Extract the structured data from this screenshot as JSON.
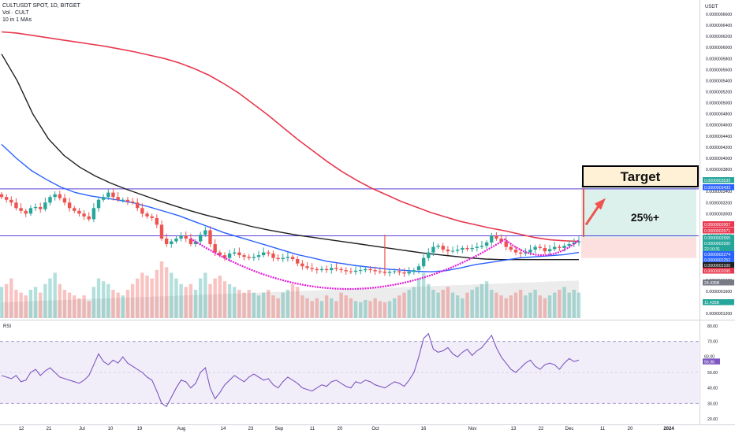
{
  "header": {
    "symbol_line": "CULTUSDT SPOT, 1D, BITGET",
    "volume_line": "Vol · CULT",
    "ma_line": "10 in 1 MAs"
  },
  "currency": "USDT",
  "colors": {
    "up": "#26a69a",
    "down": "#ef5350",
    "ma_red": "#e8384f",
    "ma_black": "#1e1e1e",
    "ma_blue": "#2962ff",
    "cup": "#e21bd4",
    "level": "#5b3fd6",
    "rsi": "#7e57c2",
    "target_fill": "#fff1d6"
  },
  "chart_data": [
    {
      "type": "candlestick",
      "title": "CULTUSDT SPOT, 1D, BITGET",
      "y_ticks": [
        "0.0000006600",
        "0.0000006400",
        "0.0000006200",
        "0.0000006000",
        "0.0000005800",
        "0.0000005600",
        "0.0000005400",
        "0.0000005200",
        "0.0000005000",
        "0.0000004800",
        "0.0000004600",
        "0.0000004400",
        "0.0000004200",
        "0.0000004000",
        "0.0000003800",
        "0.0000003600",
        "0.0000003400",
        "0.0000003200",
        "0.0000003000",
        "0.0000002800",
        "0.0000002600",
        "0.0000002400",
        "0.0000002200",
        "0.0000002000",
        "0.0000001800",
        "0.0000001600",
        "0.0000001400",
        "0.0000001200"
      ],
      "ylim": [
        1.2e-07,
        6.6e-07
      ],
      "x_ticks": [
        "12",
        "21",
        "Jul",
        "10",
        "19",
        "Aug",
        "14",
        "23",
        "Sep",
        "11",
        "20",
        "Oct",
        "16",
        "Nov",
        "13",
        "22",
        "Dec",
        "11",
        "20",
        "2024"
      ],
      "close_series": [
        3.3,
        3.25,
        3.2,
        3.1,
        3.05,
        3.0,
        3.1,
        3.12,
        3.08,
        3.2,
        3.3,
        3.35,
        3.28,
        3.2,
        3.1,
        3.05,
        3.0,
        2.95,
        2.9,
        3.1,
        3.25,
        3.3,
        3.38,
        3.3,
        3.25,
        3.25,
        3.22,
        3.2,
        3.1,
        3.0,
        2.95,
        2.92,
        2.8,
        2.55,
        2.45,
        2.5,
        2.55,
        2.6,
        2.55,
        2.45,
        2.5,
        2.62,
        2.7,
        2.45,
        2.3,
        2.25,
        2.2,
        2.28,
        2.3,
        2.25,
        2.22,
        2.2,
        2.22,
        2.25,
        2.3,
        2.28,
        2.2,
        2.18,
        2.2,
        2.22,
        2.18,
        2.1,
        2.05,
        2.02,
        2.0,
        1.98,
        2.0,
        1.98,
        2.02,
        2.0,
        1.98,
        1.96,
        1.95,
        1.97,
        1.98,
        2.0,
        1.98,
        1.96,
        1.95,
        1.93,
        1.95,
        1.96,
        1.94,
        1.92,
        1.95,
        1.98,
        2.05,
        2.2,
        2.3,
        2.4,
        2.42,
        2.35,
        2.32,
        2.33,
        2.35,
        2.38,
        2.36,
        2.38,
        2.4,
        2.42,
        2.48,
        2.6,
        2.55,
        2.5,
        2.4,
        2.35,
        2.3,
        2.28,
        2.3,
        2.35,
        2.4,
        2.38,
        2.32,
        2.36,
        2.4,
        2.38,
        2.42,
        2.45,
        2.48,
        2.5
      ],
      "volume_series": [
        0.55,
        0.6,
        0.7,
        0.5,
        0.45,
        0.4,
        0.5,
        0.55,
        0.45,
        0.6,
        0.7,
        0.8,
        0.6,
        0.5,
        0.45,
        0.4,
        0.35,
        0.4,
        0.3,
        0.55,
        0.7,
        0.65,
        0.6,
        0.5,
        0.45,
        0.4,
        0.5,
        0.6,
        0.7,
        0.8,
        0.75,
        0.7,
        0.85,
        1.0,
        0.9,
        0.8,
        0.7,
        0.6,
        0.55,
        0.6,
        0.5,
        0.7,
        0.8,
        0.6,
        0.7,
        0.75,
        0.65,
        0.6,
        0.55,
        0.5,
        0.45,
        0.5,
        0.45,
        0.4,
        0.45,
        0.5,
        0.4,
        0.35,
        0.45,
        0.5,
        0.6,
        0.55,
        0.4,
        0.35,
        0.3,
        0.35,
        0.3,
        0.4,
        0.35,
        0.3,
        0.45,
        0.4,
        0.35,
        0.3,
        0.28,
        0.32,
        0.3,
        0.35,
        0.3,
        0.28,
        0.3,
        0.35,
        0.4,
        0.45,
        0.5,
        0.55,
        0.7,
        0.8,
        0.6,
        0.5,
        0.45,
        0.5,
        0.55,
        0.45,
        0.4,
        0.35,
        0.45,
        0.5,
        0.55,
        0.6,
        0.65,
        0.5,
        0.45,
        0.4,
        0.35,
        0.4,
        0.45,
        0.5,
        0.4,
        0.45,
        0.5,
        0.4,
        0.35,
        0.4,
        0.45,
        0.5,
        0.55,
        0.45,
        0.5,
        0.45
      ],
      "ma_red_series": [
        6.28,
        6.26,
        6.22,
        6.18,
        6.14,
        6.1,
        6.06,
        6.02,
        5.97,
        5.92,
        5.86,
        5.8,
        5.72,
        5.62,
        5.5,
        5.35,
        5.18,
        4.98,
        4.78,
        4.56,
        4.34,
        4.14,
        3.94,
        3.76,
        3.6,
        3.46,
        3.34,
        3.22,
        3.12,
        3.02,
        2.94,
        2.86,
        2.8,
        2.74,
        2.69,
        2.63,
        2.57,
        2.53,
        2.51,
        2.5
      ],
      "ma_black_series": [
        5.88,
        5.4,
        4.8,
        4.35,
        4.05,
        3.84,
        3.68,
        3.55,
        3.44,
        3.34,
        3.24,
        3.15,
        3.06,
        2.98,
        2.91,
        2.84,
        2.77,
        2.71,
        2.66,
        2.61,
        2.57,
        2.53,
        2.49,
        2.45,
        2.41,
        2.37,
        2.33,
        2.29,
        2.26,
        2.23,
        2.2,
        2.18,
        2.17,
        2.17,
        2.17,
        2.17,
        2.17,
        2.17
      ],
      "ma_blue_series": [
        4.25,
        4.0,
        3.78,
        3.62,
        3.48,
        3.38,
        3.32,
        3.28,
        3.24,
        3.19,
        3.12,
        3.04,
        2.96,
        2.86,
        2.76,
        2.66,
        2.58,
        2.5,
        2.42,
        2.34,
        2.26,
        2.2,
        2.14,
        2.1,
        2.06,
        2.03,
        2.0,
        1.98,
        1.96,
        1.95,
        1.97,
        2.02,
        2.08,
        2.12,
        2.16,
        2.2,
        2.22,
        2.24,
        2.26,
        2.3
      ],
      "horizontal_levels": [
        3.447e-07,
        2.6e-07
      ],
      "labels": {
        "target": "Target",
        "gain": "25%+"
      },
      "price_tags": [
        {
          "value": "0.0000003539",
          "color": "#26a69a"
        },
        {
          "value": "0.0000003433",
          "color": "#2962ff"
        },
        {
          "value": "0.0000002607",
          "color": "#e8384f"
        },
        {
          "value": "0.0000002571",
          "color": "#e8384f"
        },
        {
          "value": "0.0000002555",
          "color": "#26a69a"
        },
        {
          "value": "0.0000002500",
          "color": "#26a69a"
        },
        {
          "value": "22:10:31",
          "color": "#26a69a"
        },
        {
          "value": "0.0000002274",
          "color": "#2962ff"
        },
        {
          "value": "0.0000002252",
          "color": "#2962ff"
        },
        {
          "value": "0.0000002100",
          "color": "#1e1e1e"
        },
        {
          "value": "0.0000002095",
          "color": "#e8384f"
        },
        {
          "value": "24.435B",
          "color": "#787b86"
        },
        {
          "value": "11.435B",
          "color": "#26a69a"
        }
      ]
    },
    {
      "type": "line",
      "title": "RSI",
      "y_ticks": [
        "80.00",
        "70.00",
        "60.00",
        "50.00",
        "40.00",
        "30.00",
        "20.00"
      ],
      "ylim": [
        20,
        80
      ],
      "bands": [
        70,
        30
      ],
      "current_value_tags": [
        "60.00",
        "56.96"
      ],
      "values": [
        48,
        47,
        46,
        48,
        44,
        45,
        50,
        52,
        48,
        51,
        53,
        50,
        47,
        46,
        45,
        44,
        43,
        45,
        48,
        55,
        62,
        57,
        55,
        58,
        56,
        60,
        56,
        54,
        52,
        50,
        47,
        45,
        38,
        30,
        28,
        34,
        40,
        45,
        44,
        40,
        43,
        50,
        53,
        40,
        33,
        37,
        42,
        45,
        48,
        46,
        44,
        47,
        49,
        47,
        45,
        46,
        42,
        40,
        44,
        47,
        45,
        43,
        40,
        39,
        38,
        40,
        42,
        41,
        44,
        45,
        43,
        41,
        40,
        44,
        43,
        45,
        44,
        42,
        41,
        40,
        42,
        44,
        43,
        41,
        45,
        50,
        60,
        72,
        75,
        65,
        63,
        64,
        66,
        62,
        60,
        63,
        65,
        61,
        64,
        66,
        70,
        74,
        66,
        60,
        56,
        52,
        50,
        53,
        56,
        58,
        54,
        52,
        55,
        56,
        55,
        52,
        56,
        59,
        57,
        58
      ]
    }
  ]
}
